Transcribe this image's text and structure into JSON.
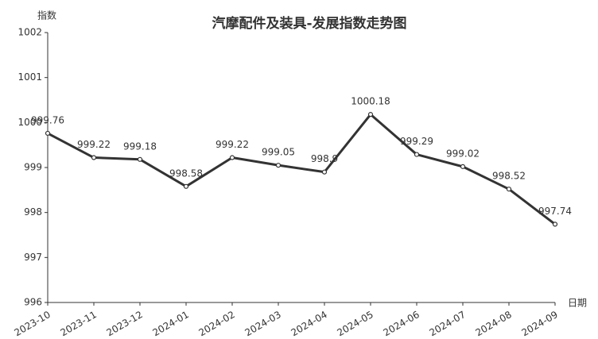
{
  "chart_data": {
    "type": "line",
    "title": "汽摩配件及装具-发展指数走势图",
    "y_label": "指数",
    "x_label": "日期",
    "categories": [
      "2023-10",
      "2023-11",
      "2023-12",
      "2024-01",
      "2024-02",
      "2024-03",
      "2024-04",
      "2024-05",
      "2024-06",
      "2024-07",
      "2024-08",
      "2024-09"
    ],
    "series": [
      {
        "name": "发展指数",
        "color": "#333333",
        "values": [
          999.76,
          999.22,
          999.18,
          998.58,
          999.22,
          999.05,
          998.9,
          1000.18,
          999.29,
          999.02,
          998.52,
          997.74
        ]
      }
    ],
    "ylim": [
      996,
      1002
    ],
    "yticks": [
      996,
      997,
      998,
      999,
      1000,
      1001,
      1002
    ]
  }
}
